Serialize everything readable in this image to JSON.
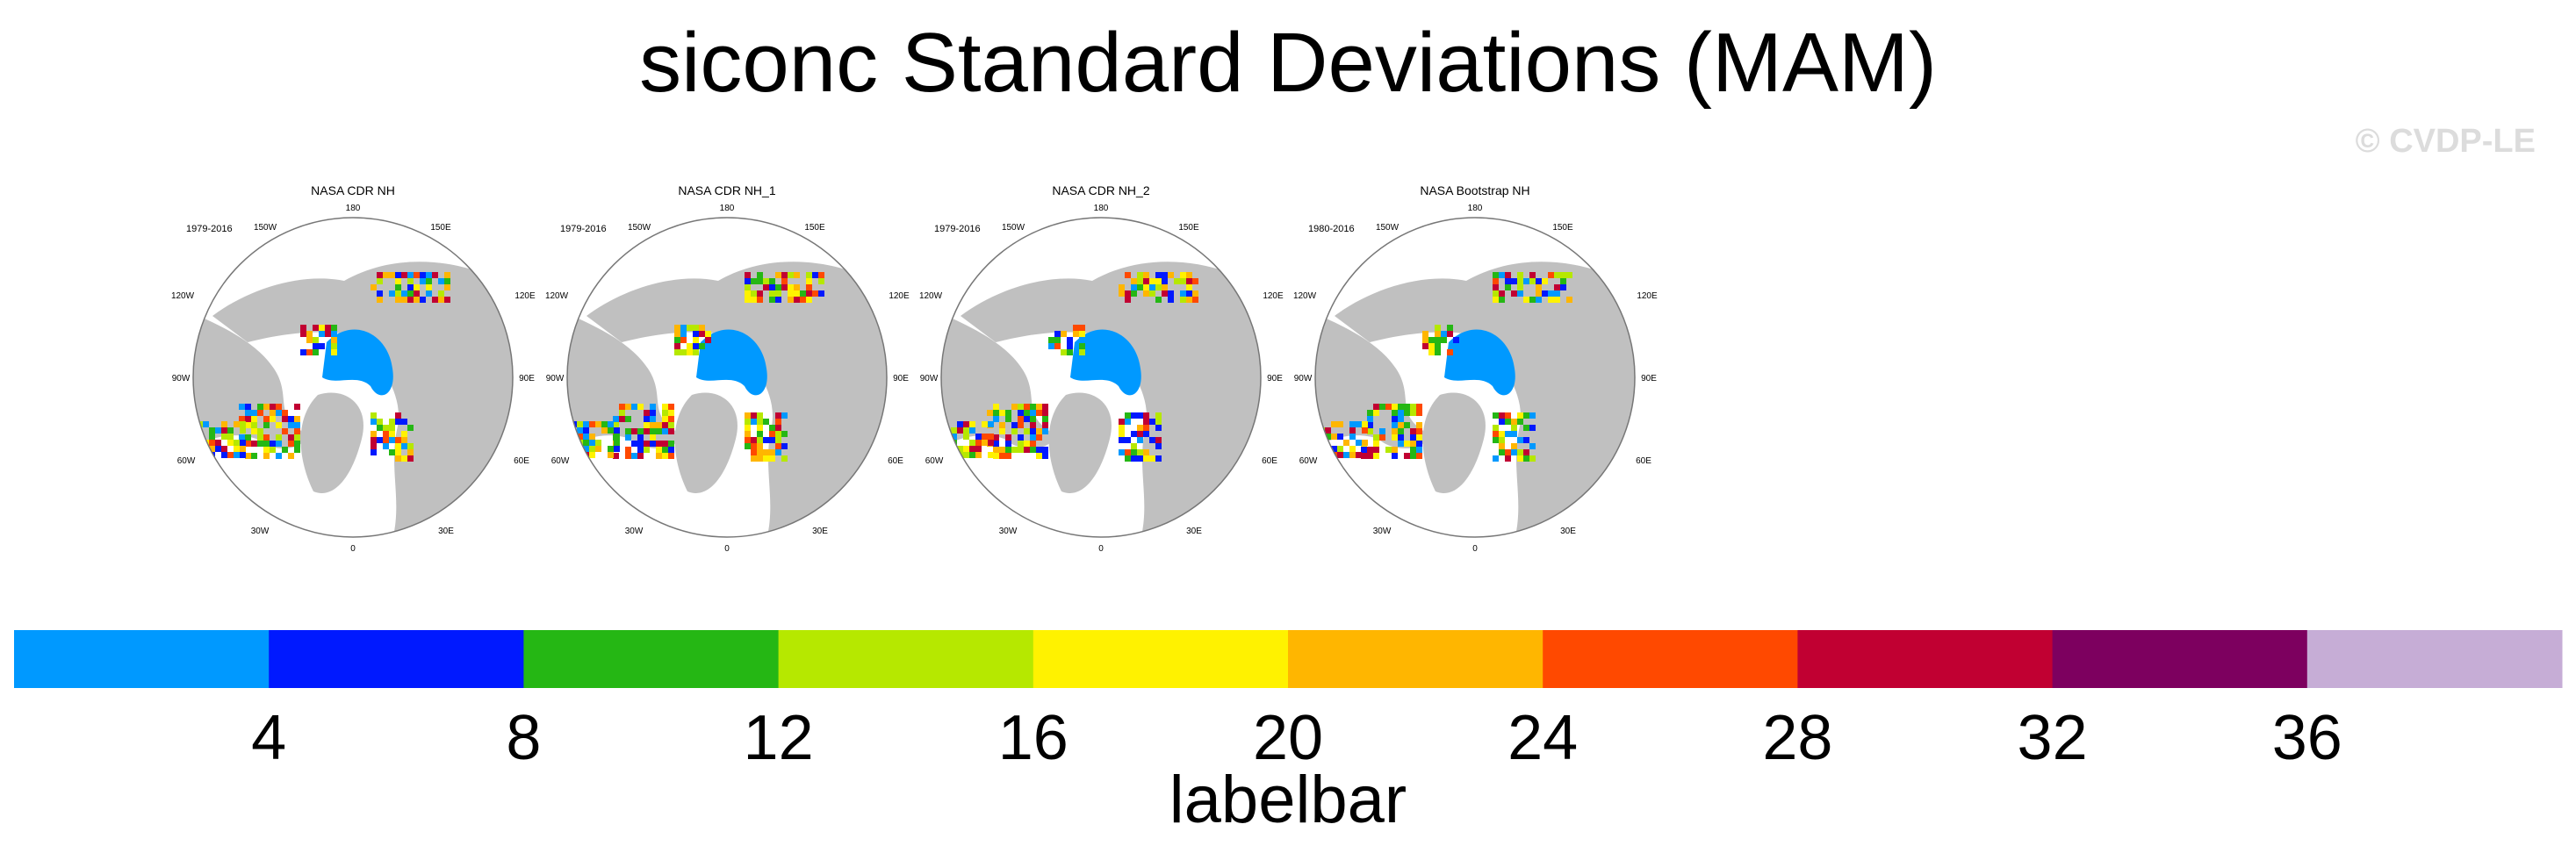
{
  "title": "siconc Standard Deviations (MAM)",
  "watermark": "© CVDP-LE",
  "panels": [
    {
      "title": "NASA CDR NH",
      "years": "1979-2016"
    },
    {
      "title": "NASA CDR NH_1",
      "years": "1979-2016"
    },
    {
      "title": "NASA CDR NH_2",
      "years": "1979-2016"
    },
    {
      "title": "NASA Bootstrap NH",
      "years": "1980-2016"
    }
  ],
  "longitude_labels": {
    "top": "180",
    "bottom": "0",
    "upper_left": "150W",
    "upper_right": "150E",
    "mid_upper_left": "120W",
    "mid_upper_right": "120E",
    "left": "90W",
    "right": "90E",
    "mid_lower_left": "60W",
    "mid_lower_right": "60E",
    "lower_left": "30W",
    "lower_right": "30E"
  },
  "labelbar": {
    "title": "labelbar",
    "tick_labels": [
      "4",
      "8",
      "12",
      "16",
      "20",
      "24",
      "28",
      "32",
      "36"
    ],
    "colors": [
      "#0099ff",
      "#0019ff",
      "#25b714",
      "#b6e800",
      "#fff200",
      "#ffb600",
      "#ff4900",
      "#c10032",
      "#7d005f",
      "#c6add6"
    ]
  },
  "colors": {
    "land": "#c0c0c0",
    "ocean": "#ffffff",
    "ice_low": "#0099ff"
  }
}
